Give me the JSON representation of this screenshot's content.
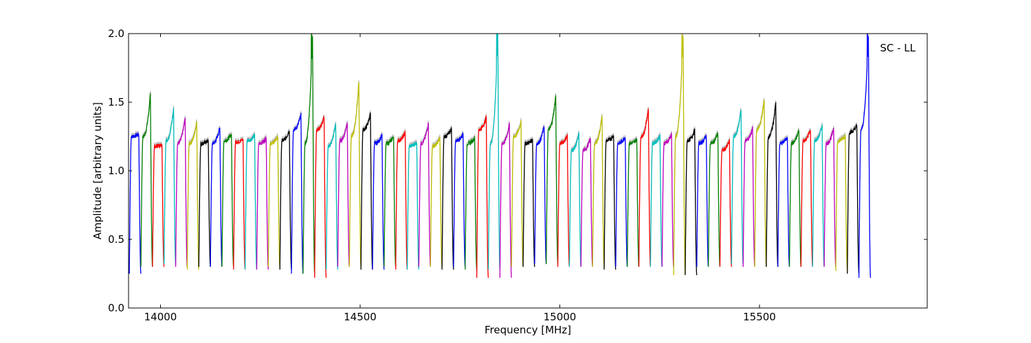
{
  "chart_data": {
    "type": "line",
    "xlabel": "Frequency [MHz]",
    "ylabel": "Amplitude [arbitrary units]",
    "annotation": "SC - LL",
    "xlim": [
      13920,
      15920
    ],
    "ylim": [
      0.0,
      2.0
    ],
    "x_ticks": [
      14000,
      14500,
      15000,
      15500
    ],
    "x_tick_labels": [
      "14000",
      "14500",
      "15000",
      "15500"
    ],
    "y_ticks": [
      0.0,
      0.5,
      1.0,
      1.5,
      2.0
    ],
    "y_tick_labels": [
      "0.0",
      "0.5",
      "1.0",
      "1.5",
      "2.0"
    ],
    "grid": false,
    "colors": [
      "#0000ff",
      "#008000",
      "#ff0000",
      "#00bfbf",
      "#bf00bf",
      "#bfbf00",
      "#000000"
    ],
    "shadow_color": "#bfbfbf",
    "segment_width_mhz": 29,
    "segments": [
      {
        "start": 13922,
        "low": 0.25,
        "mid": 1.25,
        "peak": 1.27,
        "color": "#0000ff"
      },
      {
        "start": 13951,
        "low": 0.3,
        "mid": 1.25,
        "peak": 1.56,
        "color": "#008000"
      },
      {
        "start": 13980,
        "low": 0.3,
        "mid": 1.18,
        "peak": 1.19,
        "color": "#ff0000"
      },
      {
        "start": 14009,
        "low": 0.32,
        "mid": 1.22,
        "peak": 1.46,
        "color": "#00bfbf"
      },
      {
        "start": 14038,
        "low": 0.3,
        "mid": 1.2,
        "peak": 1.39,
        "color": "#bf00bf"
      },
      {
        "start": 14067,
        "low": 0.28,
        "mid": 1.2,
        "peak": 1.36,
        "color": "#bfbf00"
      },
      {
        "start": 14096,
        "low": 0.3,
        "mid": 1.2,
        "peak": 1.22,
        "color": "#000000"
      },
      {
        "start": 14125,
        "low": 0.3,
        "mid": 1.2,
        "peak": 1.32,
        "color": "#0000ff"
      },
      {
        "start": 14154,
        "low": 0.3,
        "mid": 1.22,
        "peak": 1.27,
        "color": "#008000"
      },
      {
        "start": 14183,
        "low": 0.28,
        "mid": 1.21,
        "peak": 1.23,
        "color": "#ff0000"
      },
      {
        "start": 14212,
        "low": 0.28,
        "mid": 1.22,
        "peak": 1.26,
        "color": "#00bfbf"
      },
      {
        "start": 14241,
        "low": 0.28,
        "mid": 1.2,
        "peak": 1.24,
        "color": "#bf00bf"
      },
      {
        "start": 14270,
        "low": 0.3,
        "mid": 1.2,
        "peak": 1.25,
        "color": "#bfbf00"
      },
      {
        "start": 14299,
        "low": 0.28,
        "mid": 1.22,
        "peak": 1.3,
        "color": "#000000"
      },
      {
        "start": 14328,
        "low": 0.25,
        "mid": 1.3,
        "peak": 1.41,
        "color": "#0000ff"
      },
      {
        "start": 14357,
        "low": 0.25,
        "mid": 1.2,
        "peak": 2.0,
        "color": "#008000"
      },
      {
        "start": 14386,
        "low": 0.22,
        "mid": 1.3,
        "peak": 1.39,
        "color": "#ff0000"
      },
      {
        "start": 14415,
        "low": 0.28,
        "mid": 1.18,
        "peak": 1.35,
        "color": "#00bfbf"
      },
      {
        "start": 14444,
        "low": 0.3,
        "mid": 1.22,
        "peak": 1.36,
        "color": "#bf00bf"
      },
      {
        "start": 14473,
        "low": 0.3,
        "mid": 1.25,
        "peak": 1.66,
        "color": "#bfbf00"
      },
      {
        "start": 14502,
        "low": 0.28,
        "mid": 1.3,
        "peak": 1.42,
        "color": "#000000"
      },
      {
        "start": 14531,
        "low": 0.28,
        "mid": 1.2,
        "peak": 1.26,
        "color": "#0000ff"
      },
      {
        "start": 14560,
        "low": 0.3,
        "mid": 1.2,
        "peak": 1.25,
        "color": "#008000"
      },
      {
        "start": 14589,
        "low": 0.28,
        "mid": 1.22,
        "peak": 1.28,
        "color": "#ff0000"
      },
      {
        "start": 14618,
        "low": 0.28,
        "mid": 1.18,
        "peak": 1.21,
        "color": "#00bfbf"
      },
      {
        "start": 14647,
        "low": 0.3,
        "mid": 1.2,
        "peak": 1.35,
        "color": "#bf00bf"
      },
      {
        "start": 14676,
        "low": 0.3,
        "mid": 1.18,
        "peak": 1.24,
        "color": "#bfbf00"
      },
      {
        "start": 14705,
        "low": 0.28,
        "mid": 1.25,
        "peak": 1.31,
        "color": "#000000"
      },
      {
        "start": 14734,
        "low": 0.3,
        "mid": 1.22,
        "peak": 1.27,
        "color": "#0000ff"
      },
      {
        "start": 14763,
        "low": 0.28,
        "mid": 1.2,
        "peak": 1.24,
        "color": "#008000"
      },
      {
        "start": 14792,
        "low": 0.22,
        "mid": 1.3,
        "peak": 1.39,
        "color": "#ff0000"
      },
      {
        "start": 14821,
        "low": 0.28,
        "mid": 1.2,
        "peak": 2.0,
        "color": "#00bfbf"
      },
      {
        "start": 14850,
        "low": 0.22,
        "mid": 1.2,
        "peak": 1.34,
        "color": "#bf00bf"
      },
      {
        "start": 14879,
        "low": 0.3,
        "mid": 1.25,
        "peak": 1.36,
        "color": "#bfbf00"
      },
      {
        "start": 14908,
        "low": 0.3,
        "mid": 1.2,
        "peak": 1.23,
        "color": "#000000"
      },
      {
        "start": 14937,
        "low": 0.32,
        "mid": 1.2,
        "peak": 1.33,
        "color": "#0000ff"
      },
      {
        "start": 14966,
        "low": 0.32,
        "mid": 1.3,
        "peak": 1.55,
        "color": "#008000"
      },
      {
        "start": 14995,
        "low": 0.3,
        "mid": 1.2,
        "peak": 1.26,
        "color": "#ff0000"
      },
      {
        "start": 15024,
        "low": 0.3,
        "mid": 1.15,
        "peak": 1.27,
        "color": "#00bfbf"
      },
      {
        "start": 15053,
        "low": 0.3,
        "mid": 1.15,
        "peak": 1.24,
        "color": "#bf00bf"
      },
      {
        "start": 15082,
        "low": 0.3,
        "mid": 1.2,
        "peak": 1.4,
        "color": "#bfbf00"
      },
      {
        "start": 15111,
        "low": 0.28,
        "mid": 1.22,
        "peak": 1.26,
        "color": "#000000"
      },
      {
        "start": 15140,
        "low": 0.3,
        "mid": 1.2,
        "peak": 1.25,
        "color": "#0000ff"
      },
      {
        "start": 15169,
        "low": 0.3,
        "mid": 1.2,
        "peak": 1.23,
        "color": "#008000"
      },
      {
        "start": 15198,
        "low": 0.3,
        "mid": 1.25,
        "peak": 1.46,
        "color": "#ff0000"
      },
      {
        "start": 15227,
        "low": 0.3,
        "mid": 1.2,
        "peak": 1.26,
        "color": "#00bfbf"
      },
      {
        "start": 15256,
        "low": 0.3,
        "mid": 1.2,
        "peak": 1.27,
        "color": "#bf00bf"
      },
      {
        "start": 15285,
        "low": 0.24,
        "mid": 1.25,
        "peak": 2.0,
        "color": "#bfbf00"
      },
      {
        "start": 15314,
        "low": 0.24,
        "mid": 1.22,
        "peak": 1.3,
        "color": "#000000"
      },
      {
        "start": 15343,
        "low": 0.3,
        "mid": 1.2,
        "peak": 1.26,
        "color": "#0000ff"
      },
      {
        "start": 15372,
        "low": 0.3,
        "mid": 1.2,
        "peak": 1.28,
        "color": "#008000"
      },
      {
        "start": 15401,
        "low": 0.3,
        "mid": 1.15,
        "peak": 1.22,
        "color": "#ff0000"
      },
      {
        "start": 15430,
        "low": 0.32,
        "mid": 1.25,
        "peak": 1.45,
        "color": "#00bfbf"
      },
      {
        "start": 15459,
        "low": 0.3,
        "mid": 1.22,
        "peak": 1.31,
        "color": "#bf00bf"
      },
      {
        "start": 15488,
        "low": 0.3,
        "mid": 1.3,
        "peak": 1.52,
        "color": "#bfbf00"
      },
      {
        "start": 15517,
        "low": 0.3,
        "mid": 1.25,
        "peak": 1.5,
        "color": "#000000"
      },
      {
        "start": 15546,
        "low": 0.3,
        "mid": 1.2,
        "peak": 1.25,
        "color": "#0000ff"
      },
      {
        "start": 15575,
        "low": 0.3,
        "mid": 1.2,
        "peak": 1.3,
        "color": "#008000"
      },
      {
        "start": 15604,
        "low": 0.3,
        "mid": 1.22,
        "peak": 1.3,
        "color": "#ff0000"
      },
      {
        "start": 15633,
        "low": 0.3,
        "mid": 1.22,
        "peak": 1.33,
        "color": "#00bfbf"
      },
      {
        "start": 15662,
        "low": 0.3,
        "mid": 1.2,
        "peak": 1.31,
        "color": "#bf00bf"
      },
      {
        "start": 15691,
        "low": 0.27,
        "mid": 1.22,
        "peak": 1.26,
        "color": "#bfbf00"
      },
      {
        "start": 15720,
        "low": 0.25,
        "mid": 1.28,
        "peak": 1.33,
        "color": "#000000"
      },
      {
        "start": 15749,
        "low": 0.22,
        "mid": 1.3,
        "peak": 2.0,
        "color": "#0000ff"
      }
    ]
  }
}
